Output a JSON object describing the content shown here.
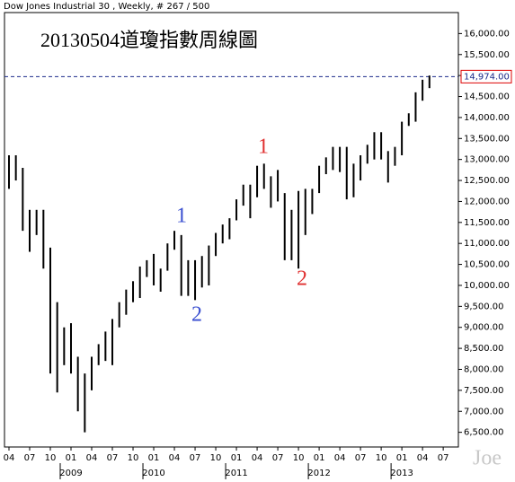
{
  "chart_data": {
    "type": "hlbar",
    "header": "Dow Jones Industrial 30 , Weekly, # 267 / 500",
    "title": "20130504道瓊指數周線圖",
    "watermark": "Joe",
    "annotations": [
      "1",
      "2",
      "1",
      "2"
    ],
    "color": "#000000",
    "high": [
      13100,
      13100,
      12800,
      11800,
      11800,
      11800,
      10900,
      9600,
      9000,
      9100,
      8300,
      7900,
      8300,
      8600,
      8900,
      9200,
      9600,
      9900,
      10100,
      10450,
      10600,
      10750,
      10400,
      11000,
      11300,
      11200,
      10600,
      10600,
      10700,
      10950,
      11250,
      11450,
      11600,
      12050,
      12400,
      12400,
      12850,
      12900,
      12600,
      12750,
      12200,
      11800,
      12250,
      12300,
      12300,
      12850,
      13050,
      13300,
      13300,
      13300,
      12900,
      13100,
      13350,
      13650,
      13650,
      13200,
      13300,
      13900,
      14100,
      14600,
      14900,
      15000
    ],
    "low": [
      12300,
      12500,
      11300,
      10800,
      11200,
      10400,
      7900,
      7450,
      8100,
      7900,
      7000,
      6500,
      7500,
      8100,
      8200,
      8100,
      9000,
      9300,
      9600,
      9700,
      10200,
      10000,
      9850,
      10350,
      10850,
      9750,
      9750,
      9650,
      9950,
      10000,
      10700,
      11000,
      11100,
      11550,
      11900,
      11600,
      12100,
      12300,
      11850,
      12000,
      10600,
      10600,
      10400,
      11200,
      11700,
      12200,
      12650,
      12750,
      12700,
      12050,
      12100,
      12500,
      12900,
      13000,
      13000,
      12450,
      12850,
      13100,
      13800,
      13900,
      14400,
      14700
    ],
    "xlim": [
      -0.65,
      65.2
    ],
    "xticks": [
      {
        "value": 0,
        "label": "04"
      },
      {
        "value": 3,
        "label": "07"
      },
      {
        "value": 6,
        "label": "10"
      },
      {
        "value": 9,
        "label": "01"
      },
      {
        "value": 12,
        "label": "04"
      },
      {
        "value": 15,
        "label": "07"
      },
      {
        "value": 18,
        "label": "10"
      },
      {
        "value": 21,
        "label": "01"
      },
      {
        "value": 24,
        "label": "04"
      },
      {
        "value": 27,
        "label": "07"
      },
      {
        "value": 30,
        "label": "10"
      },
      {
        "value": 33,
        "label": "01"
      },
      {
        "value": 36,
        "label": "04"
      },
      {
        "value": 39,
        "label": "07"
      },
      {
        "value": 42,
        "label": "10"
      },
      {
        "value": 45,
        "label": "01"
      },
      {
        "value": 48,
        "label": "04"
      },
      {
        "value": 51,
        "label": "07"
      },
      {
        "value": 54,
        "label": "10"
      },
      {
        "value": 57,
        "label": "01"
      },
      {
        "value": 60,
        "label": "04"
      },
      {
        "value": 63,
        "label": "07"
      }
    ],
    "years": [
      {
        "value": 9,
        "label": "2009"
      },
      {
        "value": 21,
        "label": "2010"
      },
      {
        "value": 33,
        "label": "2011"
      },
      {
        "value": 45,
        "label": "2012"
      },
      {
        "value": 57,
        "label": "2013"
      }
    ],
    "ylim": [
      6150,
      16500
    ],
    "yticks": [
      {
        "value": 6500,
        "label": "6,500.00"
      },
      {
        "value": 7000,
        "label": "7,000.00"
      },
      {
        "value": 7500,
        "label": "7,500.00"
      },
      {
        "value": 8000,
        "label": "8,000.00"
      },
      {
        "value": 8500,
        "label": "8,500.00"
      },
      {
        "value": 9000,
        "label": "9,000.00"
      },
      {
        "value": 9500,
        "label": "9,500.00"
      },
      {
        "value": 10000,
        "label": "10,000.00"
      },
      {
        "value": 10500,
        "label": "10,500.00"
      },
      {
        "value": 11000,
        "label": "11,000.00"
      },
      {
        "value": 11500,
        "label": "11,500.00"
      },
      {
        "value": 12000,
        "label": "12,000.00"
      },
      {
        "value": 12500,
        "label": "12,500.00"
      },
      {
        "value": 13000,
        "label": "13,000.00"
      },
      {
        "value": 13500,
        "label": "13,500.00"
      },
      {
        "value": 14000,
        "label": "14,000.00"
      },
      {
        "value": 14500,
        "label": "14,500.00"
      },
      {
        "value": 15000,
        "label": "15,000.00"
      },
      {
        "value": 15500,
        "label": "15,500.00"
      },
      {
        "value": 16000,
        "label": "16,000.00"
      }
    ],
    "last_price": {
      "value": 14974,
      "label": "14,974.00"
    }
  }
}
